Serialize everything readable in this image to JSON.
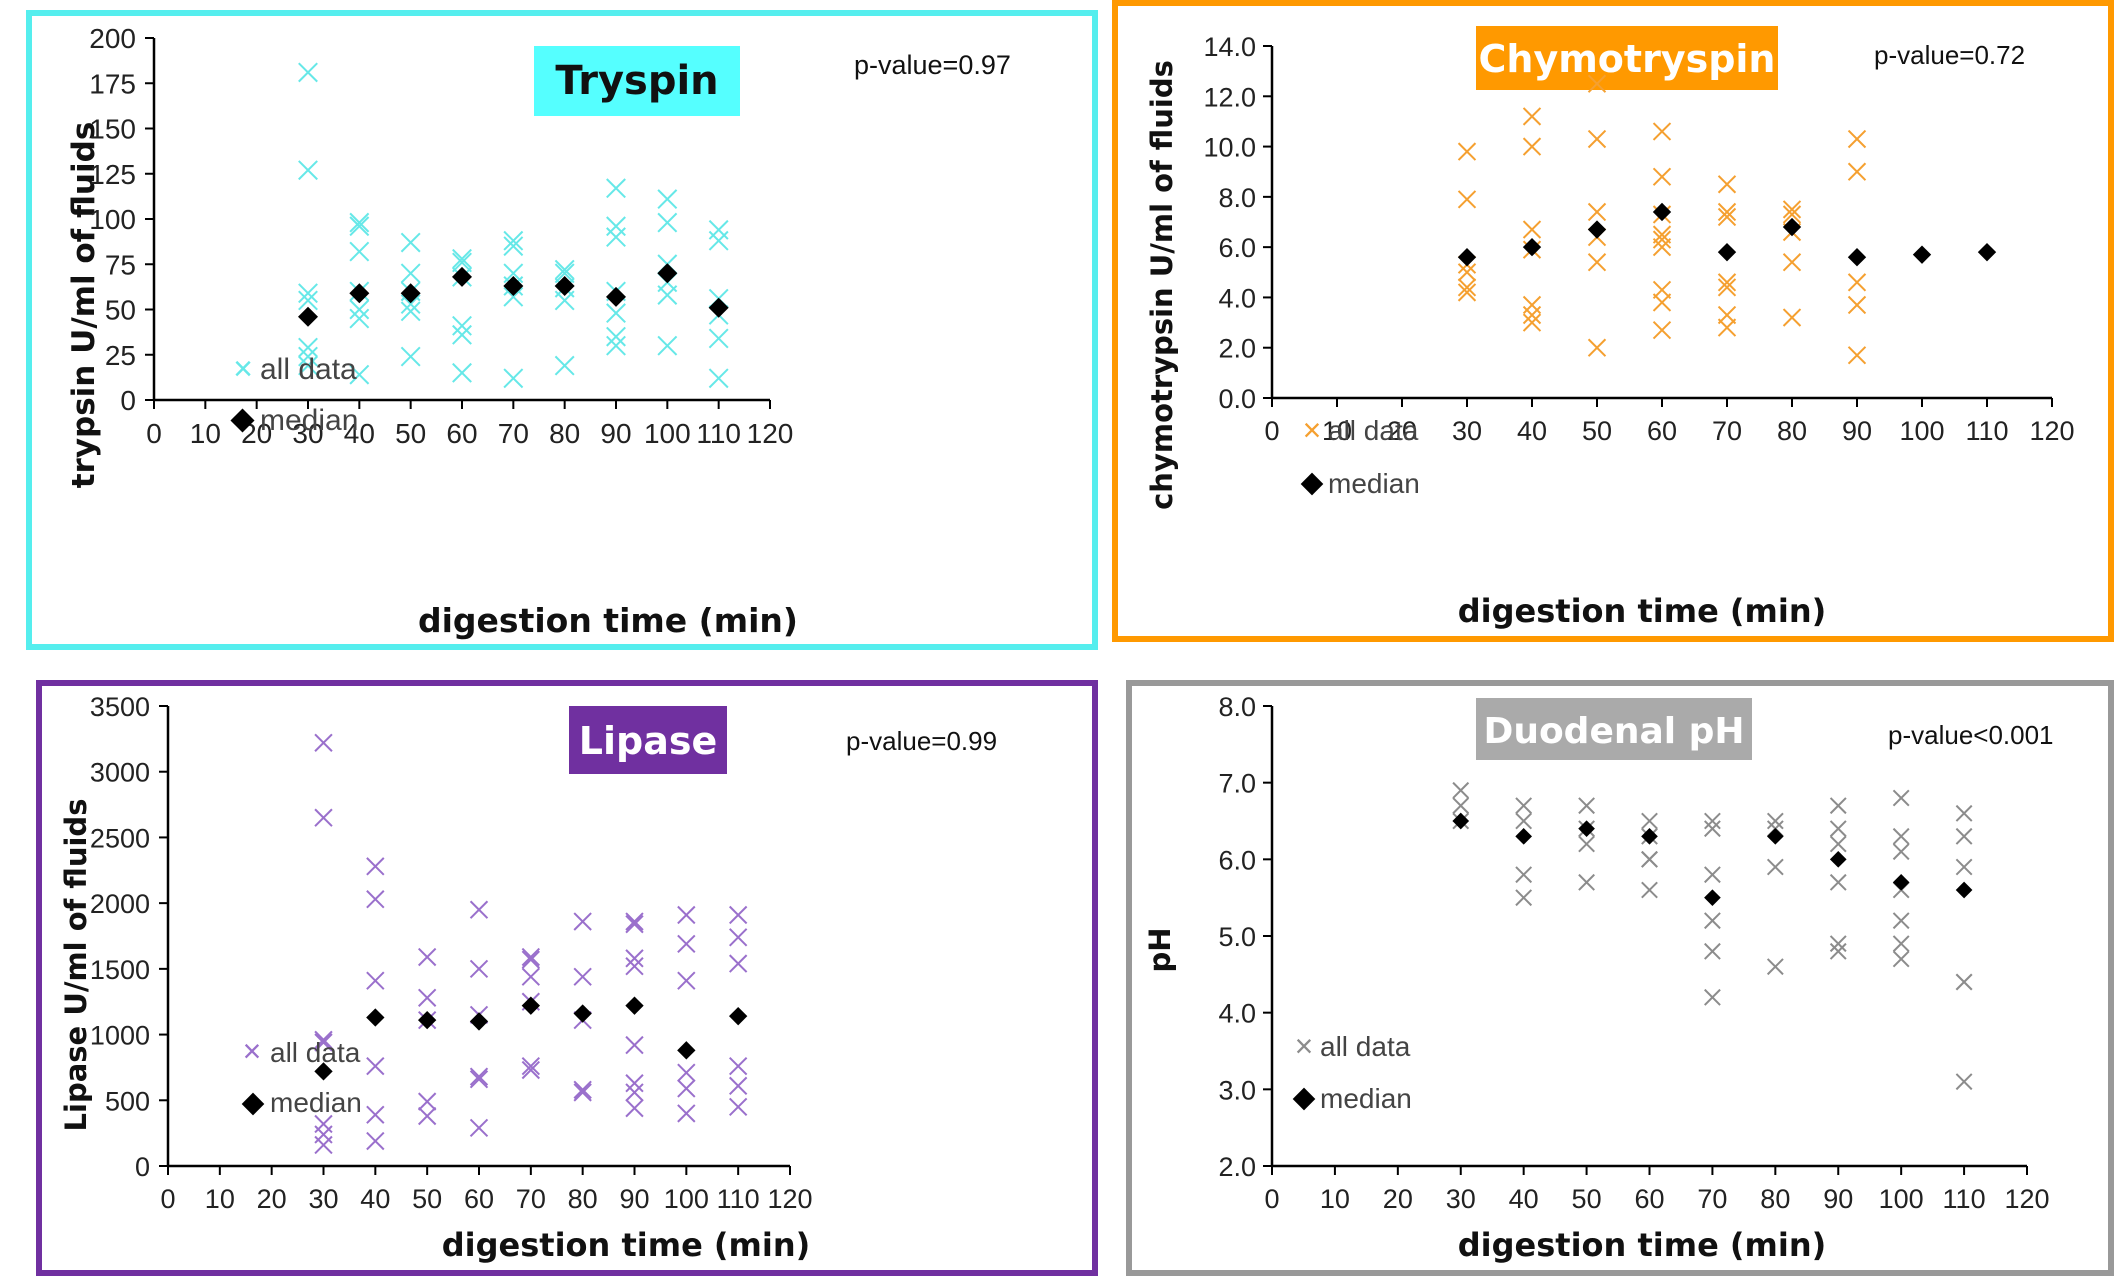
{
  "chart_data": [
    {
      "id": "trypsin",
      "type": "scatter",
      "title": "Tryspin",
      "title_bg": "#55ffff",
      "title_color": "#111111",
      "border_color": "#55eeee",
      "point_color": "#66e8e8",
      "p_value": "p-value=0.97",
      "xlabel": "digestion time (min)",
      "ylabel": "trypsin U/ml of fluids",
      "xlim": [
        0,
        120
      ],
      "ylim": [
        0,
        200
      ],
      "xticks": [
        "0",
        "10",
        "20",
        "30",
        "40",
        "50",
        "60",
        "70",
        "80",
        "90",
        "100",
        "110",
        "120"
      ],
      "yticks": [
        "0",
        "25",
        "50",
        "75",
        "100",
        "125",
        "150",
        "175",
        "200"
      ],
      "legend": {
        "all": "all data",
        "median": "median",
        "position": "left-middle"
      },
      "all_data": [
        [
          30,
          181
        ],
        [
          30,
          127
        ],
        [
          30,
          59
        ],
        [
          30,
          55
        ],
        [
          30,
          29
        ],
        [
          30,
          24
        ],
        [
          30,
          19
        ],
        [
          40,
          98
        ],
        [
          40,
          96
        ],
        [
          40,
          82
        ],
        [
          40,
          60
        ],
        [
          40,
          50
        ],
        [
          40,
          45
        ],
        [
          40,
          14
        ],
        [
          50,
          87
        ],
        [
          50,
          70
        ],
        [
          50,
          60
        ],
        [
          50,
          53
        ],
        [
          50,
          49
        ],
        [
          50,
          24
        ],
        [
          60,
          78
        ],
        [
          60,
          76
        ],
        [
          60,
          68
        ],
        [
          60,
          41
        ],
        [
          60,
          36
        ],
        [
          60,
          15
        ],
        [
          70,
          88
        ],
        [
          70,
          85
        ],
        [
          70,
          70
        ],
        [
          70,
          63
        ],
        [
          70,
          57
        ],
        [
          70,
          12
        ],
        [
          80,
          72
        ],
        [
          80,
          70
        ],
        [
          80,
          62
        ],
        [
          80,
          55
        ],
        [
          80,
          19
        ],
        [
          90,
          117
        ],
        [
          90,
          96
        ],
        [
          90,
          90
        ],
        [
          90,
          60
        ],
        [
          90,
          48
        ],
        [
          90,
          35
        ],
        [
          90,
          30
        ],
        [
          100,
          111
        ],
        [
          100,
          98
        ],
        [
          100,
          75
        ],
        [
          100,
          65
        ],
        [
          100,
          58
        ],
        [
          100,
          30
        ],
        [
          110,
          94
        ],
        [
          110,
          88
        ],
        [
          110,
          56
        ],
        [
          110,
          47
        ],
        [
          110,
          34
        ],
        [
          110,
          12
        ]
      ],
      "median": [
        [
          30,
          46
        ],
        [
          40,
          59
        ],
        [
          50,
          59
        ],
        [
          60,
          68
        ],
        [
          70,
          63
        ],
        [
          80,
          63
        ],
        [
          90,
          57
        ],
        [
          100,
          70
        ],
        [
          110,
          51
        ]
      ]
    },
    {
      "id": "chymotrypsin",
      "type": "scatter",
      "title": "Chymotryspin",
      "title_bg": "#ff9900",
      "title_color": "#ffffff",
      "border_color": "#ff9900",
      "point_color": "#f5a030",
      "p_value": "p-value=0.72",
      "xlabel": "digestion time (min)",
      "ylabel": "chymotrypsin U/ml of fluids",
      "xlim": [
        0,
        120
      ],
      "ylim": [
        0,
        14
      ],
      "xticks": [
        "0",
        "10",
        "20",
        "30",
        "40",
        "50",
        "60",
        "70",
        "80",
        "90",
        "100",
        "110",
        "120"
      ],
      "yticks": [
        "0.0",
        "2.0",
        "4.0",
        "6.0",
        "8.0",
        "10.0",
        "12.0",
        "14.0"
      ],
      "legend": {
        "all": "all data",
        "median": "median",
        "position": "bottom-left"
      },
      "all_data": [
        [
          30,
          9.8
        ],
        [
          30,
          7.9
        ],
        [
          30,
          5.3
        ],
        [
          30,
          5.0
        ],
        [
          30,
          4.4
        ],
        [
          30,
          4.2
        ],
        [
          40,
          11.2
        ],
        [
          40,
          10.0
        ],
        [
          40,
          6.7
        ],
        [
          40,
          5.9
        ],
        [
          40,
          3.7
        ],
        [
          40,
          3.3
        ],
        [
          40,
          3.0
        ],
        [
          50,
          12.5
        ],
        [
          50,
          10.3
        ],
        [
          50,
          7.4
        ],
        [
          50,
          6.4
        ],
        [
          50,
          5.4
        ],
        [
          50,
          2.0
        ],
        [
          60,
          10.6
        ],
        [
          60,
          8.8
        ],
        [
          60,
          7.3
        ],
        [
          60,
          6.5
        ],
        [
          60,
          6.3
        ],
        [
          60,
          6.0
        ],
        [
          60,
          4.3
        ],
        [
          60,
          3.8
        ],
        [
          60,
          2.7
        ],
        [
          70,
          8.5
        ],
        [
          70,
          7.4
        ],
        [
          70,
          7.2
        ],
        [
          70,
          4.6
        ],
        [
          70,
          4.4
        ],
        [
          70,
          3.3
        ],
        [
          70,
          2.8
        ],
        [
          80,
          7.5
        ],
        [
          80,
          7.3
        ],
        [
          80,
          6.6
        ],
        [
          80,
          5.4
        ],
        [
          80,
          3.2
        ],
        [
          90,
          10.3
        ],
        [
          90,
          9.0
        ],
        [
          90,
          4.6
        ],
        [
          90,
          3.7
        ],
        [
          90,
          1.7
        ]
      ],
      "median": [
        [
          30,
          5.6
        ],
        [
          40,
          6.0
        ],
        [
          50,
          6.7
        ],
        [
          60,
          7.4
        ],
        [
          70,
          5.8
        ],
        [
          80,
          6.8
        ],
        [
          90,
          5.6
        ],
        [
          100,
          5.7
        ],
        [
          110,
          5.8
        ]
      ]
    },
    {
      "id": "lipase",
      "type": "scatter",
      "title": "Lipase",
      "title_bg": "#7030a0",
      "title_color": "#ffffff",
      "border_color": "#7030a0",
      "point_color": "#9a70cc",
      "p_value": "p-value=0.99",
      "xlabel": "digestion time (min)",
      "ylabel": "Lipase U/ml of fluids",
      "xlim": [
        0,
        120
      ],
      "ylim": [
        0,
        3500
      ],
      "xticks": [
        "0",
        "10",
        "20",
        "30",
        "40",
        "50",
        "60",
        "70",
        "80",
        "90",
        "100",
        "110",
        "120"
      ],
      "yticks": [
        "0",
        "500",
        "1000",
        "1500",
        "2000",
        "2500",
        "3000",
        "3500"
      ],
      "legend": {
        "all": "all data",
        "median": "median",
        "position": "bottom-left"
      },
      "all_data": [
        [
          30,
          3220
        ],
        [
          30,
          2650
        ],
        [
          30,
          960
        ],
        [
          30,
          940
        ],
        [
          30,
          320
        ],
        [
          30,
          240
        ],
        [
          30,
          160
        ],
        [
          40,
          2280
        ],
        [
          40,
          2030
        ],
        [
          40,
          1410
        ],
        [
          40,
          760
        ],
        [
          40,
          390
        ],
        [
          40,
          190
        ],
        [
          50,
          1590
        ],
        [
          50,
          1280
        ],
        [
          50,
          1110
        ],
        [
          50,
          490
        ],
        [
          50,
          380
        ],
        [
          60,
          1950
        ],
        [
          60,
          1500
        ],
        [
          60,
          1150
        ],
        [
          60,
          680
        ],
        [
          60,
          660
        ],
        [
          60,
          290
        ],
        [
          70,
          1590
        ],
        [
          70,
          1570
        ],
        [
          70,
          1440
        ],
        [
          70,
          1250
        ],
        [
          70,
          760
        ],
        [
          70,
          730
        ],
        [
          80,
          1860
        ],
        [
          80,
          1440
        ],
        [
          80,
          1110
        ],
        [
          80,
          580
        ],
        [
          80,
          560
        ],
        [
          90,
          1860
        ],
        [
          90,
          1840
        ],
        [
          90,
          1580
        ],
        [
          90,
          1520
        ],
        [
          90,
          920
        ],
        [
          90,
          630
        ],
        [
          90,
          560
        ],
        [
          90,
          440
        ],
        [
          100,
          1910
        ],
        [
          100,
          1690
        ],
        [
          100,
          1410
        ],
        [
          100,
          710
        ],
        [
          100,
          590
        ],
        [
          100,
          400
        ],
        [
          110,
          1910
        ],
        [
          110,
          1740
        ],
        [
          110,
          1540
        ],
        [
          110,
          760
        ],
        [
          110,
          610
        ],
        [
          110,
          450
        ]
      ],
      "median": [
        [
          30,
          720
        ],
        [
          40,
          1130
        ],
        [
          50,
          1110
        ],
        [
          60,
          1100
        ],
        [
          70,
          1220
        ],
        [
          80,
          1160
        ],
        [
          90,
          1220
        ],
        [
          100,
          880
        ],
        [
          110,
          1140
        ]
      ]
    },
    {
      "id": "ph",
      "type": "scatter",
      "title": "Duodenal pH",
      "title_bg": "#aaaaaa",
      "title_color": "#ffffff",
      "border_color": "#999999",
      "point_color": "#8c8c8c",
      "p_value": "p-value<0.001",
      "xlabel": "digestion time (min)",
      "ylabel": "pH",
      "xlim": [
        0,
        120
      ],
      "ylim": [
        2.0,
        8.0
      ],
      "xticks": [
        "0",
        "10",
        "20",
        "30",
        "40",
        "50",
        "60",
        "70",
        "80",
        "90",
        "100",
        "110",
        "120"
      ],
      "yticks": [
        "2.0",
        "3.0",
        "4.0",
        "5.0",
        "6.0",
        "7.0",
        "8.0"
      ],
      "legend": {
        "all": "all data",
        "median": "median",
        "position": "bottom-left"
      },
      "all_data": [
        [
          30,
          6.9
        ],
        [
          30,
          6.7
        ],
        [
          30,
          6.5
        ],
        [
          40,
          6.7
        ],
        [
          40,
          6.5
        ],
        [
          40,
          5.8
        ],
        [
          40,
          5.5
        ],
        [
          50,
          6.7
        ],
        [
          50,
          6.4
        ],
        [
          50,
          6.2
        ],
        [
          50,
          5.7
        ],
        [
          60,
          6.5
        ],
        [
          60,
          6.3
        ],
        [
          60,
          6.0
        ],
        [
          60,
          6.0
        ],
        [
          60,
          5.6
        ],
        [
          70,
          6.5
        ],
        [
          70,
          6.4
        ],
        [
          70,
          5.8
        ],
        [
          70,
          5.2
        ],
        [
          70,
          4.8
        ],
        [
          70,
          4.2
        ],
        [
          80,
          6.5
        ],
        [
          80,
          6.4
        ],
        [
          80,
          5.9
        ],
        [
          80,
          4.6
        ],
        [
          90,
          6.7
        ],
        [
          90,
          6.4
        ],
        [
          90,
          6.2
        ],
        [
          90,
          5.7
        ],
        [
          90,
          4.9
        ],
        [
          90,
          4.8
        ],
        [
          100,
          6.8
        ],
        [
          100,
          6.3
        ],
        [
          100,
          6.1
        ],
        [
          100,
          5.6
        ],
        [
          100,
          5.2
        ],
        [
          100,
          4.9
        ],
        [
          100,
          4.7
        ],
        [
          110,
          6.6
        ],
        [
          110,
          6.3
        ],
        [
          110,
          5.9
        ],
        [
          110,
          4.4
        ],
        [
          110,
          4.4
        ],
        [
          110,
          3.1
        ]
      ],
      "median": [
        [
          30,
          6.5
        ],
        [
          40,
          6.3
        ],
        [
          50,
          6.4
        ],
        [
          60,
          6.3
        ],
        [
          70,
          5.5
        ],
        [
          80,
          6.3
        ],
        [
          90,
          6.0
        ],
        [
          100,
          5.7
        ],
        [
          110,
          5.6
        ]
      ]
    }
  ]
}
